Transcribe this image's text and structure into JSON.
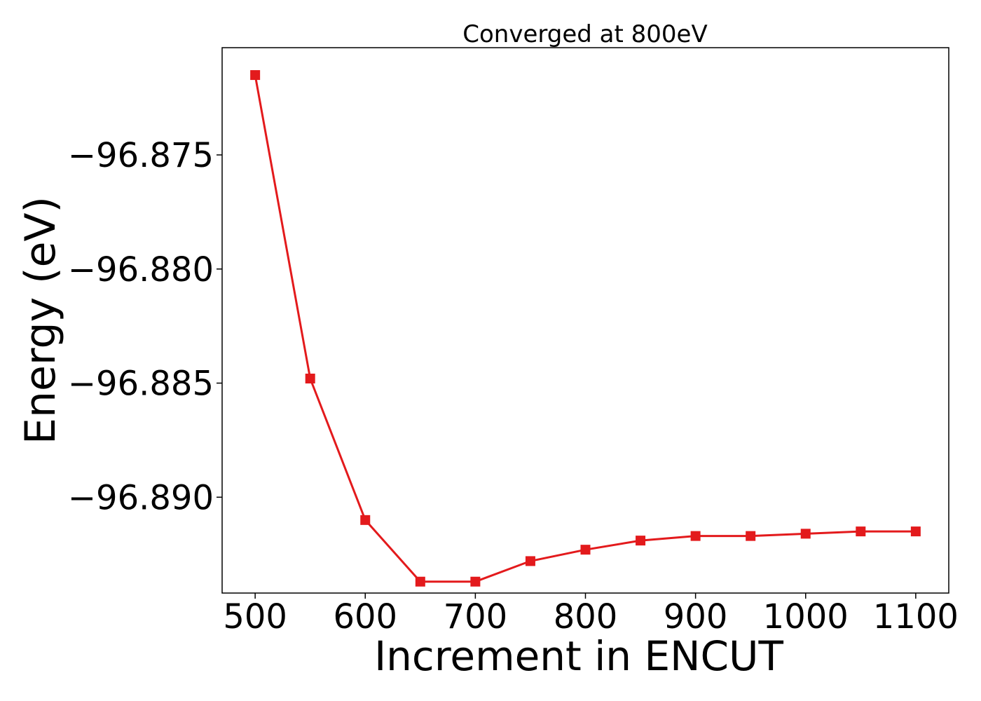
{
  "chart_data": {
    "type": "line",
    "title": "Converged at 800eV",
    "xlabel": "Increment in ENCUT",
    "ylabel": "Energy (eV)",
    "x": [
      500,
      550,
      600,
      650,
      700,
      750,
      800,
      850,
      900,
      950,
      1000,
      1050,
      1100
    ],
    "series": [
      {
        "values": [
          -96.8715,
          -96.8848,
          -96.891,
          -96.8937,
          -96.8937,
          -96.8928,
          -96.8923,
          -96.8919,
          -96.8917,
          -96.8917,
          -96.8916,
          -96.8915,
          -96.8915
        ],
        "color": "#e31a1c",
        "marker": "square"
      }
    ],
    "xticks": [
      500,
      600,
      700,
      800,
      900,
      1000,
      1100
    ],
    "xtick_labels": [
      "500",
      "600",
      "700",
      "800",
      "900",
      "1000",
      "1100"
    ],
    "yticks": [
      -96.875,
      -96.88,
      -96.885,
      -96.89
    ],
    "ytick_labels": [
      "−96.875",
      "−96.880",
      "−96.885",
      "−96.890"
    ],
    "xlim": [
      470,
      1130
    ],
    "ylim": [
      -96.8942,
      -96.8703
    ],
    "grid": false,
    "legend": "none"
  }
}
